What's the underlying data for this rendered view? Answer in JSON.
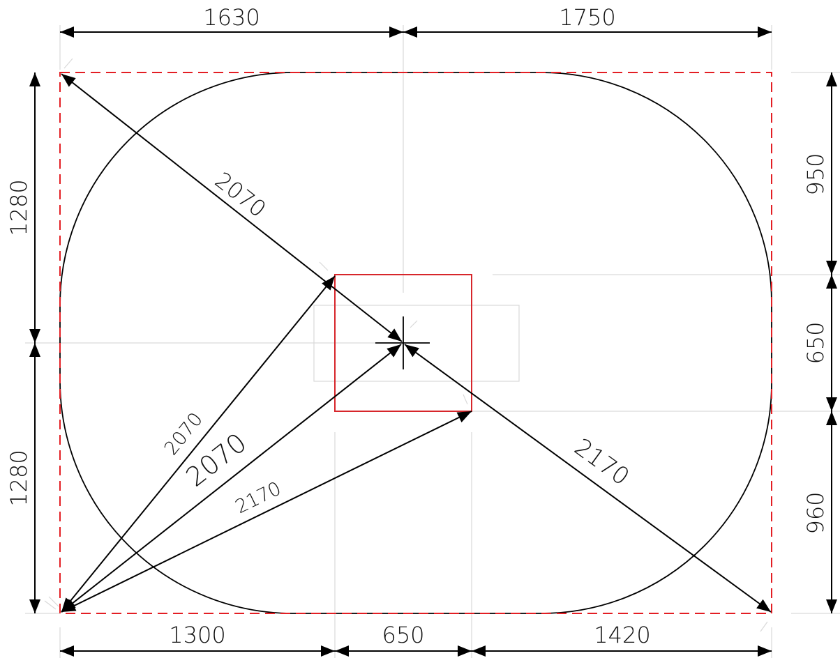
{
  "colors": {
    "boundary": "#e31e24",
    "mount": "#d7262b",
    "lines": "#000000",
    "construction": "#d9d9d9"
  },
  "dimensions": {
    "top_left": "1630",
    "top_right": "1750",
    "bottom_left": "1300",
    "bottom_mid": "650",
    "bottom_right": "1420",
    "left_upper": "1280",
    "left_lower": "1280",
    "right_upper": "950",
    "right_mid": "650",
    "right_lower": "960"
  },
  "radii": {
    "diag_top_left": "2070",
    "diag_bottom_left_outer": "2070",
    "diag_bottom_left_center": "2070",
    "diag_bottom_left_mount": "2170",
    "diag_bottom_right": "2170"
  },
  "icons": {
    "center": "center-cross-icon"
  }
}
